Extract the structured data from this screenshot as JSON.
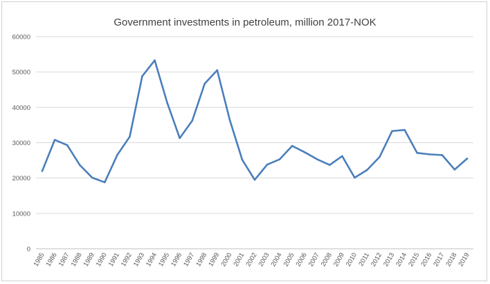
{
  "chart_data": {
    "type": "line",
    "title": "Government investments in petroleum, million 2017-NOK",
    "xlabel": "",
    "ylabel": "",
    "ylim": [
      0,
      60000
    ],
    "yticks": [
      "0",
      "10000",
      "20000",
      "30000",
      "40000",
      "50000",
      "60000"
    ],
    "grid": true,
    "legend": "none",
    "categories": [
      "1985",
      "1986",
      "1987",
      "1988",
      "1989",
      "1990",
      "1991",
      "1992",
      "1993",
      "1994",
      "1995",
      "1996",
      "1997",
      "1998",
      "1999",
      "2000",
      "2001",
      "2002",
      "2003",
      "2004",
      "2005",
      "2006",
      "2007",
      "2008",
      "2009",
      "2010",
      "2011",
      "2012",
      "2013",
      "2014",
      "2015",
      "2016",
      "2017",
      "2018",
      "2019"
    ],
    "series": [
      {
        "color": "#4a7ebb",
        "values": [
          22000,
          30800,
          29300,
          23700,
          20100,
          18800,
          26500,
          31700,
          48800,
          53300,
          41300,
          31300,
          36200,
          46700,
          50500,
          36500,
          25200,
          19500,
          23800,
          25300,
          29100,
          27300,
          25300,
          23700,
          26200,
          20100,
          22300,
          26000,
          33300,
          33600,
          27100,
          26700,
          26500,
          22400,
          25500
        ]
      }
    ]
  }
}
